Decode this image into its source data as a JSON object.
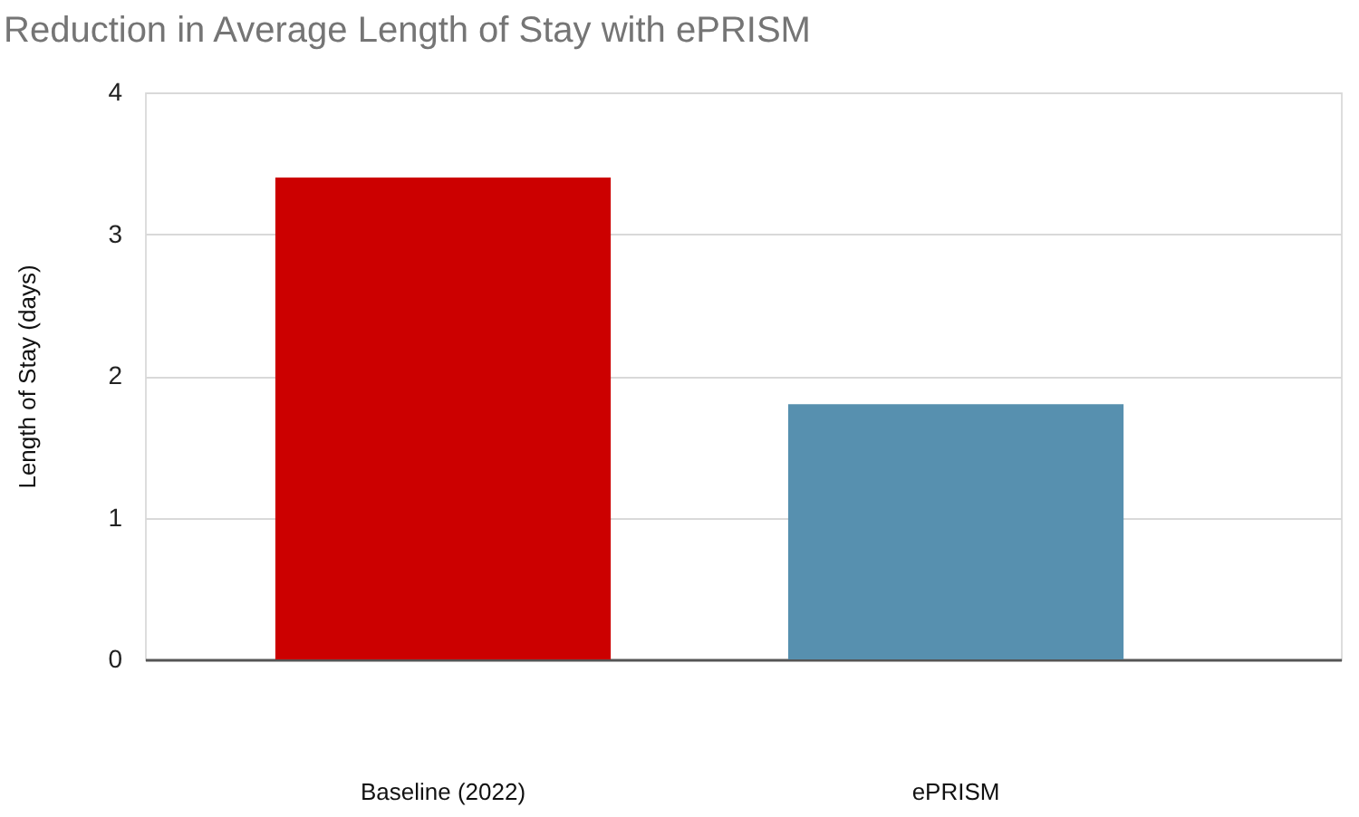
{
  "chart_data": {
    "type": "bar",
    "title": "Reduction in Average Length of Stay with ePRISM",
    "ylabel": "Length of Stay (days)",
    "categories": [
      "Baseline (2022)",
      "ePRISM"
    ],
    "values": [
      3.4,
      1.8
    ],
    "colors": [
      "#cc0000",
      "#5790af"
    ],
    "ylim": [
      0,
      4
    ],
    "yticks": [
      0,
      1,
      2,
      3,
      4
    ],
    "grid": "y"
  }
}
